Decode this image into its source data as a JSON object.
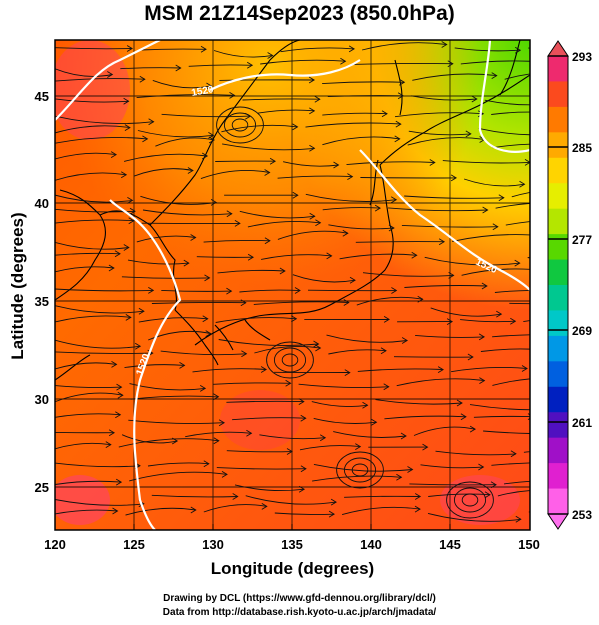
{
  "title": "MSM 21Z14Sep2023 (850.0hPa)",
  "x_axis": {
    "label": "Longitude (degrees)",
    "ticks": [
      "120",
      "125",
      "130",
      "135",
      "140",
      "145",
      "150"
    ]
  },
  "y_axis": {
    "label": "Latitude  (degrees)",
    "ticks": [
      "25",
      "30",
      "35",
      "40",
      "45"
    ]
  },
  "colorbar": {
    "tick_labels": [
      "293",
      "285",
      "277",
      "269",
      "261",
      "253"
    ],
    "colors": [
      "#ee2a6e",
      "#fb4a1e",
      "#ff7a00",
      "#ffaa00",
      "#ffd400",
      "#e6ee00",
      "#b4e600",
      "#58d800",
      "#10c840",
      "#00c890",
      "#00c8c8",
      "#0098e6",
      "#0060e0",
      "#0020c0",
      "#5010c0",
      "#a010c8",
      "#e020d0",
      "#ff60e8"
    ]
  },
  "contour_labels": [
    "1520",
    "1520",
    "1520"
  ],
  "credits": {
    "line1": "Drawing by DCL (https://www.gfd-dennou.org/library/dcl/)",
    "line2": "Data from http://database.rish.kyoto-u.ac.jp/arch/jmadata/"
  }
}
